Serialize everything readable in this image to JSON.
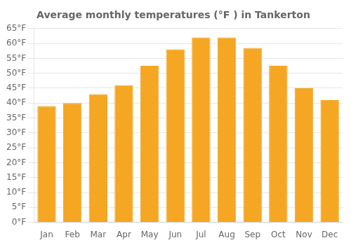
{
  "chart_data": {
    "type": "bar",
    "title": "Average monthly temperatures (°F ) in Tankerton",
    "categories": [
      "Jan",
      "Feb",
      "Mar",
      "Apr",
      "May",
      "Jun",
      "Jul",
      "Aug",
      "Sep",
      "Oct",
      "Nov",
      "Dec"
    ],
    "values": [
      39,
      40,
      43,
      46,
      52.5,
      58,
      62,
      62,
      58.5,
      52.5,
      45,
      41
    ],
    "color": "#F5A623",
    "ylim": [
      0,
      65
    ],
    "yticks": [
      {
        "value": 0,
        "label": "0°F"
      },
      {
        "value": 5,
        "label": "5°F"
      },
      {
        "value": 10,
        "label": "10°F"
      },
      {
        "value": 15,
        "label": "15°F"
      },
      {
        "value": 20,
        "label": "20°F"
      },
      {
        "value": 25,
        "label": "25°F"
      },
      {
        "value": 30,
        "label": "30°F"
      },
      {
        "value": 35,
        "label": "35°F"
      },
      {
        "value": 40,
        "label": "40°F"
      },
      {
        "value": 45,
        "label": "45°F"
      },
      {
        "value": 50,
        "label": "50°F"
      },
      {
        "value": 55,
        "label": "55°F"
      },
      {
        "value": 60,
        "label": "60°F"
      },
      {
        "value": 65,
        "label": "65°F"
      }
    ],
    "grid": true
  }
}
